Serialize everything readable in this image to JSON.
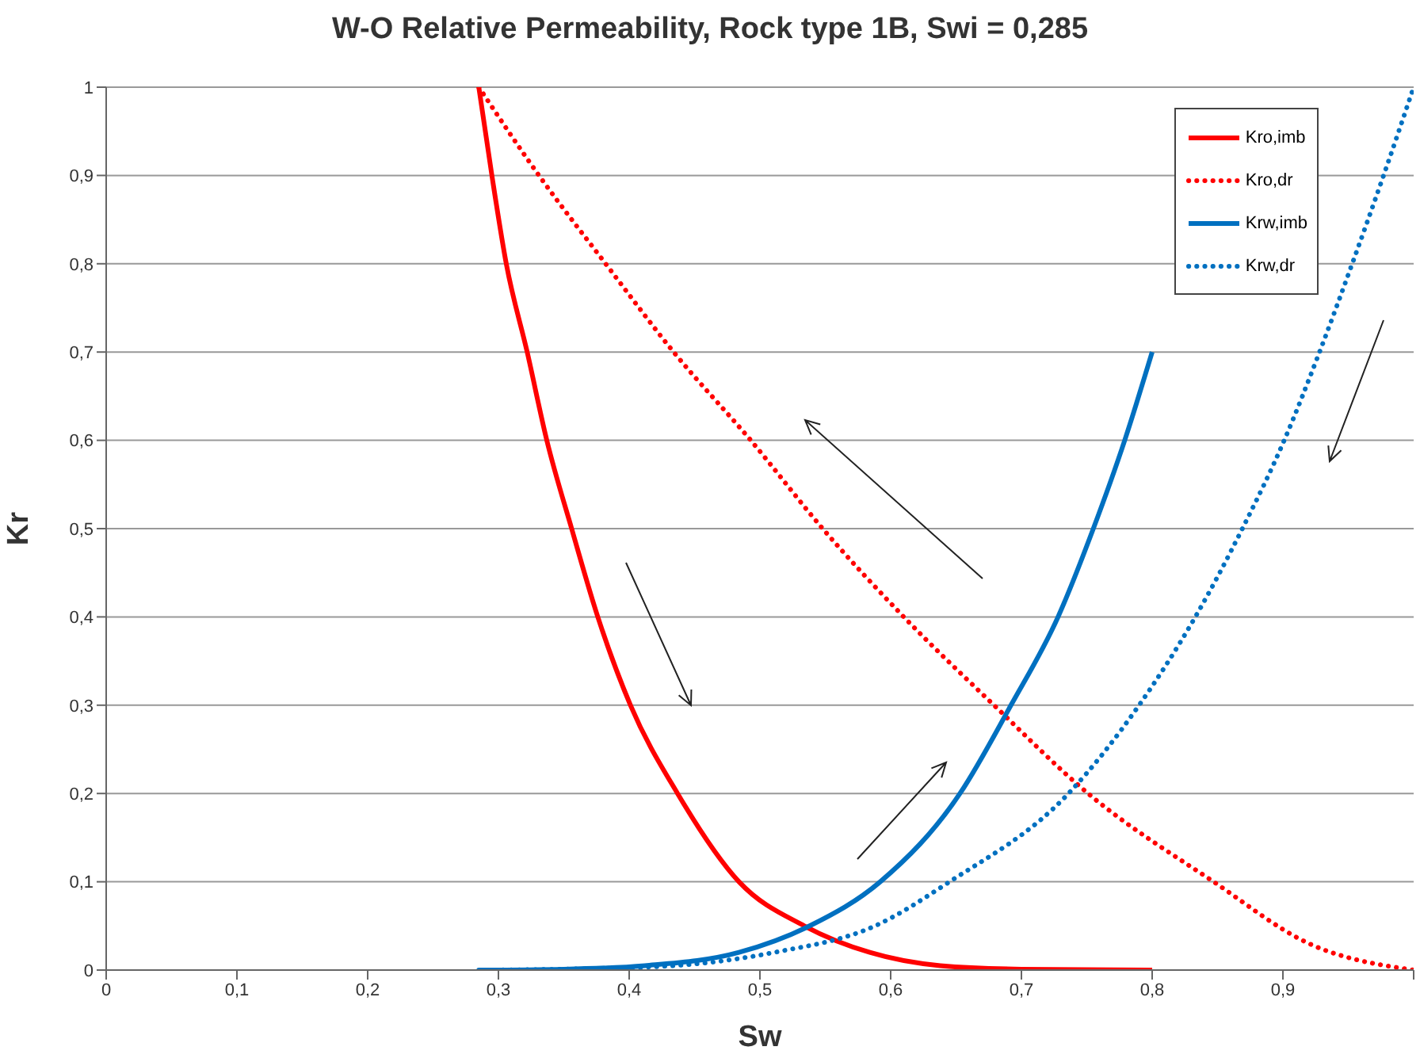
{
  "chart_data": {
    "type": "line",
    "title": "W-O Relative Permeability, Rock type 1B, Swi = 0,285",
    "xlabel": "Sw",
    "ylabel": "Kr",
    "xlim": [
      0,
      1
    ],
    "ylim": [
      0,
      1
    ],
    "xticks": [
      {
        "value": 0,
        "label": "0"
      },
      {
        "value": 0.1,
        "label": "0,1"
      },
      {
        "value": 0.2,
        "label": "0,2"
      },
      {
        "value": 0.3,
        "label": "0,3"
      },
      {
        "value": 0.4,
        "label": "0,4"
      },
      {
        "value": 0.5,
        "label": "0,5"
      },
      {
        "value": 0.6,
        "label": "0,6"
      },
      {
        "value": 0.7,
        "label": "0,7"
      },
      {
        "value": 0.8,
        "label": "0,8"
      },
      {
        "value": 0.9,
        "label": "0,9"
      },
      {
        "value": 1,
        "label": null
      }
    ],
    "yticks": [
      {
        "value": 0,
        "label": "0"
      },
      {
        "value": 0.1,
        "label": "0,1"
      },
      {
        "value": 0.2,
        "label": "0,2"
      },
      {
        "value": 0.3,
        "label": "0,3"
      },
      {
        "value": 0.4,
        "label": "0,4"
      },
      {
        "value": 0.5,
        "label": "0,5"
      },
      {
        "value": 0.6,
        "label": "0,6"
      },
      {
        "value": 0.7,
        "label": "0,7"
      },
      {
        "value": 0.8,
        "label": "0,8"
      },
      {
        "value": 0.9,
        "label": "0,9"
      },
      {
        "value": 1,
        "label": "1"
      }
    ],
    "grid": "y",
    "legend": "top right",
    "marker": "none",
    "series": [
      {
        "name": "Kro,imb",
        "color": "#ff0000",
        "line_style": "solid",
        "x": [
          0.285,
          0.295,
          0.306,
          0.322,
          0.337,
          0.356,
          0.376,
          0.401,
          0.437,
          0.484,
          0.534,
          0.584,
          0.638,
          0.7,
          0.8
        ],
        "values": [
          1,
          0.9,
          0.8,
          0.7,
          0.6,
          0.5,
          0.4,
          0.3,
          0.2,
          0.1,
          0.05,
          0.02,
          0.005,
          0.001,
          0
        ]
      },
      {
        "name": "Kro,dr",
        "color": "#ff0000",
        "line_style": "dotted",
        "x": [
          0.285,
          0.331,
          0.382,
          0.434,
          0.493,
          0.548,
          0.61,
          0.679,
          0.751,
          0.847,
          0.92,
          1
        ],
        "values": [
          1,
          0.9,
          0.8,
          0.7,
          0.6,
          0.5,
          0.4,
          0.3,
          0.2,
          0.1,
          0.03,
          0
        ]
      },
      {
        "name": "Krw,imb",
        "color": "#0070c0",
        "line_style": "solid",
        "x": [
          0.285,
          0.35,
          0.412,
          0.484,
          0.538,
          0.592,
          0.653,
          0.692,
          0.728,
          0.755,
          0.779,
          0.8
        ],
        "values": [
          0,
          0.001,
          0.005,
          0.02,
          0.05,
          0.1,
          0.2,
          0.3,
          0.4,
          0.5,
          0.6,
          0.7
        ]
      },
      {
        "name": "Krw,dr",
        "color": "#0070c0",
        "line_style": "dotted",
        "x": [
          0.285,
          0.35,
          0.434,
          0.511,
          0.588,
          0.645,
          0.736,
          0.79,
          0.833,
          0.869,
          0.901,
          0.928,
          0.953,
          0.977,
          1
        ],
        "values": [
          0,
          0.001,
          0.005,
          0.02,
          0.05,
          0.1,
          0.2,
          0.3,
          0.4,
          0.5,
          0.6,
          0.7,
          0.8,
          0.9,
          1
        ]
      }
    ]
  }
}
